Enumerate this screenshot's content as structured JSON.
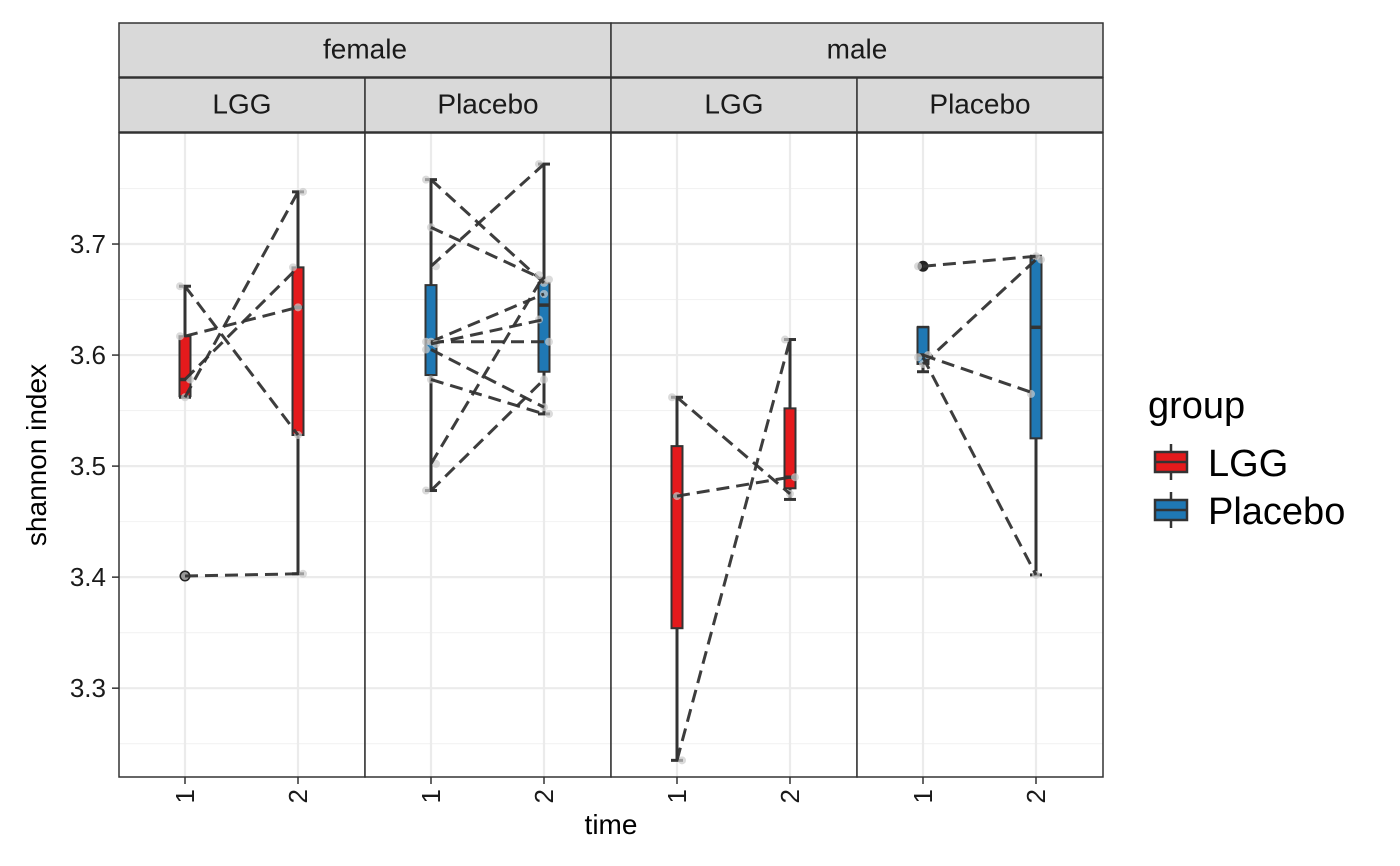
{
  "chart_data": {
    "type": "box",
    "xlabel": "time",
    "ylabel": "shannon index",
    "ylim": [
      3.22,
      3.8
    ],
    "yticks": [
      3.3,
      3.4,
      3.5,
      3.6,
      3.7
    ],
    "x_categories": [
      "1",
      "2"
    ],
    "facet_rows": [
      "female",
      "male"
    ],
    "facet_cols": [
      "LGG",
      "Placebo"
    ],
    "legend": {
      "title": "group",
      "position": "right",
      "entries": [
        {
          "label": "LGG",
          "color": "#e41a1c"
        },
        {
          "label": "Placebo",
          "color": "#1f78b4"
        }
      ]
    },
    "panels": [
      {
        "sex": "female",
        "group": "LGG",
        "boxes": [
          {
            "time": "1",
            "lower_whisker": 3.562,
            "q1": 3.563,
            "median": 3.578,
            "q3": 3.617,
            "upper_whisker": 3.662,
            "outliers": [
              3.401
            ]
          },
          {
            "time": "2",
            "lower_whisker": 3.403,
            "q1": 3.528,
            "median": 3.643,
            "q3": 3.679,
            "upper_whisker": 3.747,
            "outliers": []
          }
        ],
        "subjects": [
          [
            3.662,
            3.528
          ],
          [
            3.562,
            3.747
          ],
          [
            3.578,
            3.679
          ],
          [
            3.617,
            3.643
          ],
          [
            3.401,
            3.403
          ]
        ]
      },
      {
        "sex": "female",
        "group": "Placebo",
        "boxes": [
          {
            "time": "1",
            "lower_whisker": 3.478,
            "q1": 3.582,
            "median": 3.612,
            "q3": 3.663,
            "upper_whisker": 3.758,
            "outliers": []
          },
          {
            "time": "2",
            "lower_whisker": 3.547,
            "q1": 3.585,
            "median": 3.645,
            "q3": 3.665,
            "upper_whisker": 3.772,
            "outliers": []
          }
        ],
        "subjects": [
          [
            3.758,
            3.665
          ],
          [
            3.715,
            3.668
          ],
          [
            3.68,
            3.772
          ],
          [
            3.612,
            3.655
          ],
          [
            3.612,
            3.612
          ],
          [
            3.61,
            3.632
          ],
          [
            3.605,
            3.553
          ],
          [
            3.578,
            3.547
          ],
          [
            3.502,
            3.672
          ],
          [
            3.478,
            3.578
          ]
        ]
      },
      {
        "sex": "male",
        "group": "LGG",
        "boxes": [
          {
            "time": "1",
            "lower_whisker": 3.235,
            "q1": 3.354,
            "median": 3.473,
            "q3": 3.518,
            "upper_whisker": 3.562,
            "outliers": []
          },
          {
            "time": "2",
            "lower_whisker": 3.47,
            "q1": 3.48,
            "median": 3.49,
            "q3": 3.552,
            "upper_whisker": 3.614,
            "outliers": []
          }
        ],
        "subjects": [
          [
            3.562,
            3.475
          ],
          [
            3.473,
            3.49
          ],
          [
            3.235,
            3.614
          ]
        ]
      },
      {
        "sex": "male",
        "group": "Placebo",
        "boxes": [
          {
            "time": "1",
            "lower_whisker": 3.585,
            "q1": 3.592,
            "median": 3.6,
            "q3": 3.625,
            "upper_whisker": 3.625,
            "outliers": [
              3.68
            ]
          },
          {
            "time": "2",
            "lower_whisker": 3.402,
            "q1": 3.525,
            "median": 3.625,
            "q3": 3.687,
            "upper_whisker": 3.689,
            "outliers": []
          }
        ],
        "subjects": [
          [
            3.68,
            3.689
          ],
          [
            3.592,
            3.686
          ],
          [
            3.6,
            3.565
          ],
          [
            3.598,
            3.402
          ]
        ]
      }
    ]
  }
}
